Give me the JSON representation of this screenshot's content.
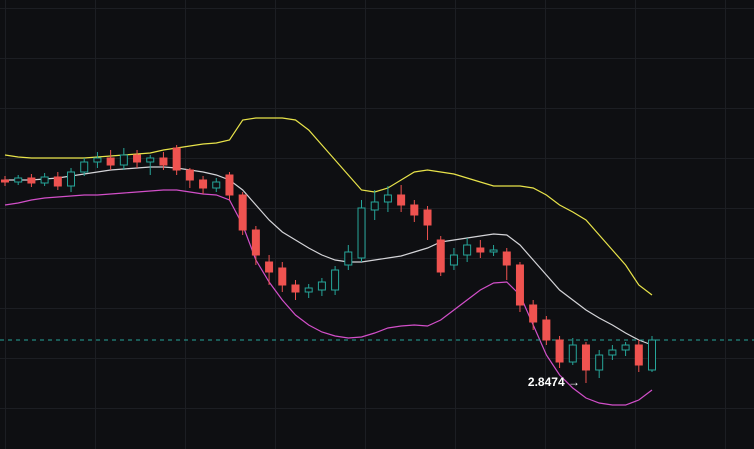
{
  "chart_data": {
    "type": "candlestick",
    "ylim": [
      2.7814,
      3.2304
    ],
    "up_color": "#26a69a",
    "down_color": "#ef5350",
    "open": [
      3.0504,
      3.0484,
      3.0524,
      3.0474,
      3.0534,
      3.0444,
      3.0584,
      3.0684,
      3.0724,
      3.0654,
      3.0754,
      3.0684,
      3.0724,
      3.0824,
      3.0604,
      3.0504,
      3.0424,
      3.0554,
      3.0354,
      3.0004,
      2.9684,
      2.9624,
      2.9454,
      2.9384,
      2.9404,
      2.9404,
      2.9654,
      2.9724,
      3.0204,
      3.0284,
      3.0354,
      3.0254,
      3.0204,
      2.9904,
      2.9654,
      2.9754,
      2.9824,
      2.9784,
      2.9784,
      2.9654,
      2.9254,
      2.9104,
      2.8904,
      2.8684,
      2.8854,
      2.8604,
      2.8754,
      2.8804,
      2.8854,
      2.8604
    ],
    "high": [
      3.0544,
      3.0554,
      3.0564,
      3.0574,
      3.0584,
      3.0624,
      3.0724,
      3.0784,
      3.0804,
      3.0824,
      3.0804,
      3.0754,
      3.0784,
      3.0854,
      3.0624,
      3.0544,
      3.0524,
      3.0584,
      3.0384,
      3.0044,
      2.9754,
      2.9684,
      2.9504,
      2.9464,
      2.9524,
      2.9644,
      2.9854,
      3.0304,
      3.0404,
      3.0444,
      3.0454,
      3.0304,
      3.0244,
      2.9944,
      2.9824,
      2.9924,
      2.9904,
      2.9854,
      2.9824,
      2.9684,
      2.9304,
      2.9144,
      2.8944,
      2.8924,
      2.8884,
      2.8804,
      2.8854,
      2.8884,
      2.8904,
      2.8944
    ],
    "low": [
      3.0444,
      3.0454,
      3.0434,
      3.0444,
      3.0404,
      3.0384,
      3.0544,
      3.0624,
      3.0604,
      3.0604,
      3.0624,
      3.0554,
      3.0604,
      3.0554,
      3.0424,
      3.0364,
      3.0384,
      3.0304,
      2.9954,
      2.9654,
      2.9454,
      2.9384,
      2.9304,
      2.9324,
      2.9344,
      2.9354,
      2.9604,
      2.9684,
      3.0104,
      3.0184,
      3.0184,
      3.0084,
      2.9904,
      2.9544,
      2.9604,
      2.9684,
      2.9724,
      2.9744,
      2.9504,
      2.9184,
      2.9004,
      2.8854,
      2.8624,
      2.8654,
      2.8474,
      2.8524,
      2.8704,
      2.8744,
      2.8584,
      2.8584
    ],
    "close": [
      3.0484,
      3.0524,
      3.0474,
      3.0534,
      3.0444,
      3.0584,
      3.0684,
      3.0724,
      3.0654,
      3.0754,
      3.0684,
      3.0724,
      3.0654,
      3.0604,
      3.0504,
      3.0424,
      3.0484,
      3.0354,
      3.0004,
      2.9754,
      2.9584,
      2.9454,
      2.9384,
      2.9424,
      2.9484,
      2.9604,
      2.9784,
      3.0224,
      3.0284,
      3.0354,
      3.0254,
      3.0154,
      3.0054,
      2.9584,
      2.9754,
      2.9854,
      2.9784,
      2.9804,
      2.9654,
      2.9254,
      2.9084,
      2.8904,
      2.8684,
      2.8854,
      2.8604,
      2.8754,
      2.8804,
      2.8854,
      2.8654,
      2.8904
    ],
    "series": [
      {
        "color": "#e8e34a",
        "values": [
          3.0754,
          3.0734,
          3.0724,
          3.0724,
          3.0724,
          3.0724,
          3.0724,
          3.0734,
          3.0744,
          3.0754,
          3.0764,
          3.0774,
          3.0804,
          3.0824,
          3.0844,
          3.0864,
          3.0874,
          3.0904,
          3.1104,
          3.1124,
          3.1124,
          3.1124,
          3.1104,
          3.1004,
          3.0854,
          3.0704,
          3.0554,
          3.0404,
          3.0384,
          3.0424,
          3.0504,
          3.0584,
          3.0604,
          3.0584,
          3.0564,
          3.0524,
          3.0484,
          3.0444,
          3.0444,
          3.0444,
          3.0424,
          3.0354,
          3.0254,
          3.0184,
          3.0104,
          2.9954,
          2.9804,
          2.9654,
          2.9454,
          2.9354
        ]
      },
      {
        "color": "#d4d4d8",
        "values": [
          3.0504,
          3.0504,
          3.0504,
          3.0514,
          3.0524,
          3.0544,
          3.0564,
          3.0584,
          3.0604,
          3.0614,
          3.0624,
          3.0634,
          3.0634,
          3.0624,
          3.0604,
          3.0584,
          3.0554,
          3.0504,
          3.0404,
          3.0254,
          3.0104,
          2.9984,
          2.9904,
          2.9824,
          2.9754,
          2.9704,
          2.9684,
          2.9684,
          2.9704,
          2.9724,
          2.9744,
          2.9784,
          2.9824,
          2.9884,
          2.9904,
          2.9924,
          2.9944,
          2.9964,
          2.9954,
          2.9854,
          2.9704,
          2.9554,
          2.9404,
          2.9304,
          2.9204,
          2.9124,
          2.9054,
          2.8974,
          2.8904,
          2.8854
        ]
      },
      {
        "color": "#d24fc9",
        "values": [
          3.0254,
          3.0274,
          3.0304,
          3.0324,
          3.0334,
          3.0344,
          3.0354,
          3.0354,
          3.0364,
          3.0374,
          3.0384,
          3.0394,
          3.0404,
          3.0404,
          3.0384,
          3.0364,
          3.0354,
          3.0304,
          3.0054,
          2.9704,
          2.9484,
          2.9304,
          2.9154,
          2.9054,
          2.8984,
          2.8944,
          2.8924,
          2.8934,
          2.8974,
          2.9024,
          2.9044,
          2.9054,
          2.9044,
          2.9104,
          2.9204,
          2.9304,
          2.9404,
          2.9474,
          2.9484,
          2.9354,
          2.9054,
          2.8754,
          2.8554,
          2.8424,
          2.8324,
          2.8274,
          2.8254,
          2.8254,
          2.8304,
          2.8404
        ]
      }
    ],
    "price_line_color": "#26a69a",
    "annotation": "2.8474 →"
  }
}
